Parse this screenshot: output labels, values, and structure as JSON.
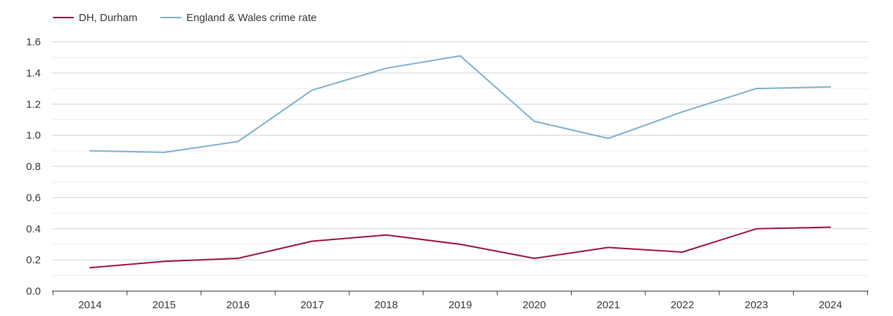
{
  "chart_data": {
    "type": "line",
    "title": "",
    "xlabel": "",
    "ylabel": "",
    "x": [
      "2014",
      "2015",
      "2016",
      "2017",
      "2018",
      "2019",
      "2020",
      "2021",
      "2022",
      "2023",
      "2024"
    ],
    "ylim": [
      0,
      1.6
    ],
    "yticks": [
      "0.0",
      "0.2",
      "0.4",
      "0.6",
      "0.8",
      "1.0",
      "1.2",
      "1.4",
      "1.6"
    ],
    "grid": true,
    "legend_position": "top-left",
    "series": [
      {
        "name": "DH, Durham",
        "color": "#9b0d34",
        "values": [
          0.15,
          0.19,
          0.21,
          0.32,
          0.36,
          0.3,
          0.21,
          0.28,
          0.25,
          0.4,
          0.41
        ]
      },
      {
        "name": "England & Wales crime rate",
        "color": "#7aaed0",
        "values": [
          0.9,
          0.89,
          0.96,
          1.29,
          1.43,
          1.51,
          1.09,
          0.98,
          1.15,
          1.3,
          1.31
        ]
      }
    ]
  }
}
